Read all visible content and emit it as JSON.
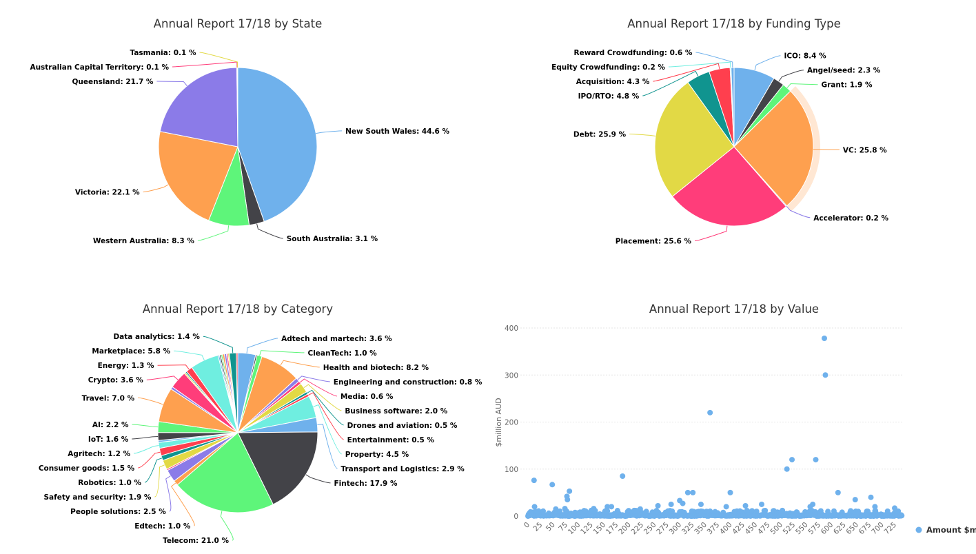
{
  "palette": [
    "#6fb1ec",
    "#434348",
    "#5ef57a",
    "#fea04f",
    "#8b7be8",
    "#ff3d7a",
    "#e2d945",
    "#10948f",
    "#ff3f4e",
    "#6feee0"
  ],
  "chart_data": [
    {
      "type": "pie",
      "title": "Annual Report 17/18 by State",
      "slices": [
        {
          "name": "New South Wales",
          "value": 44.6
        },
        {
          "name": "South Australia",
          "value": 3.1
        },
        {
          "name": "Western Australia",
          "value": 8.3
        },
        {
          "name": "Victoria",
          "value": 22.1
        },
        {
          "name": "Queensland",
          "value": 21.7
        },
        {
          "name": "Australian Capital Territory",
          "value": 0.1
        },
        {
          "name": "Tasmania",
          "value": 0.1
        }
      ]
    },
    {
      "type": "pie",
      "title": "Annual Report 17/18 by Funding Type",
      "highlighted": "VC",
      "slices": [
        {
          "name": "ICO",
          "value": 8.4
        },
        {
          "name": "Angel/seed",
          "value": 2.3
        },
        {
          "name": "Grant",
          "value": 1.9
        },
        {
          "name": "VC",
          "value": 25.8
        },
        {
          "name": "Accelerator",
          "value": 0.2
        },
        {
          "name": "Placement",
          "value": 25.6
        },
        {
          "name": "Debt",
          "value": 25.9
        },
        {
          "name": "IPO/RTO",
          "value": 4.8
        },
        {
          "name": "Acquisition",
          "value": 4.3
        },
        {
          "name": "Equity Crowdfunding",
          "value": 0.2
        },
        {
          "name": "Reward Crowdfunding",
          "value": 0.6
        }
      ]
    },
    {
      "type": "pie",
      "title": "Annual Report 17/18 by Category",
      "slices": [
        {
          "name": "Adtech and martech",
          "value": 3.6
        },
        {
          "name": null,
          "value": 0.3
        },
        {
          "name": "CleanTech",
          "value": 1.0
        },
        {
          "name": "Health and biotech",
          "value": 8.2
        },
        {
          "name": "Engineering and construction",
          "value": 0.8
        },
        {
          "name": "Media",
          "value": 0.6
        },
        {
          "name": "Business software",
          "value": 2.0
        },
        {
          "name": "Drones and aviation",
          "value": 0.5
        },
        {
          "name": "Entertainment",
          "value": 0.5
        },
        {
          "name": "Property",
          "value": 4.5
        },
        {
          "name": "Transport and Logistics",
          "value": 2.9
        },
        {
          "name": "Fintech",
          "value": 17.9
        },
        {
          "name": "Telecom",
          "value": 21.0
        },
        {
          "name": "Edtech",
          "value": 1.0
        },
        {
          "name": "People solutions",
          "value": 2.5
        },
        {
          "name": null,
          "value": 0.3
        },
        {
          "name": "Safety and security",
          "value": 1.9
        },
        {
          "name": "Robotics",
          "value": 1.0
        },
        {
          "name": "Consumer goods",
          "value": 1.5
        },
        {
          "name": "Agritech",
          "value": 1.2
        },
        {
          "name": null,
          "value": 0.4
        },
        {
          "name": "IoT",
          "value": 1.6
        },
        {
          "name": "AI",
          "value": 2.2
        },
        {
          "name": "Travel",
          "value": 7.0
        },
        {
          "name": null,
          "value": 0.5
        },
        {
          "name": "Crypto",
          "value": 3.6
        },
        {
          "name": null,
          "value": 0.3
        },
        {
          "name": null,
          "value": 0.3
        },
        {
          "name": "Energy",
          "value": 1.3
        },
        {
          "name": "Marketplace",
          "value": 5.8
        },
        {
          "name": null,
          "value": 0.3
        },
        {
          "name": null,
          "value": 0.3
        },
        {
          "name": null,
          "value": 0.3
        },
        {
          "name": null,
          "value": 0.4
        },
        {
          "name": null,
          "value": 0.4
        },
        {
          "name": null,
          "value": 0.3
        },
        {
          "name": null,
          "value": 0.3
        },
        {
          "name": "Data analytics",
          "value": 1.4
        },
        {
          "name": null,
          "value": 0.3
        }
      ]
    },
    {
      "type": "scatter",
      "title": "Annual Report 17/18 by Value",
      "ylabel": "$million AUD",
      "xlabel": "",
      "xlim": [
        0,
        735
      ],
      "ylim": [
        0,
        400
      ],
      "xticks": [
        0,
        25,
        50,
        75,
        100,
        125,
        150,
        175,
        200,
        225,
        250,
        275,
        300,
        325,
        350,
        375,
        400,
        425,
        450,
        475,
        500,
        525,
        550,
        575,
        600,
        625,
        650,
        675,
        700,
        725
      ],
      "yticks": [
        0,
        100,
        200,
        300,
        400
      ],
      "grid": true,
      "legend": {
        "label": "Amount $m",
        "position": "bottom-right"
      },
      "series": [
        {
          "name": "Amount $m",
          "baseline_count": 740,
          "baseline_max": 12,
          "points": [
            [
              12,
              76
            ],
            [
              48,
              67
            ],
            [
              82,
              53
            ],
            [
              77,
              42
            ],
            [
              78,
              35
            ],
            [
              187,
              85
            ],
            [
              360,
              220
            ],
            [
              512,
              100
            ],
            [
              522,
              120
            ],
            [
              569,
              120
            ],
            [
              586,
              378
            ],
            [
              588,
              300
            ],
            [
              400,
              50
            ],
            [
              613,
              50
            ],
            [
              316,
              50
            ],
            [
              326,
              50
            ],
            [
              678,
              40
            ],
            [
              647,
              35
            ],
            [
              13,
              20
            ],
            [
              157,
              20
            ],
            [
              257,
              22
            ],
            [
              283,
              25
            ],
            [
              300,
              33
            ],
            [
              342,
              25
            ],
            [
              306,
              27
            ],
            [
              392,
              20
            ],
            [
              430,
              22
            ],
            [
              462,
              25
            ],
            [
              558,
              20
            ],
            [
              563,
              25
            ],
            [
              686,
              20
            ],
            [
              725,
              17
            ],
            [
              165,
              20
            ],
            [
              222,
              15
            ],
            [
              130,
              16
            ],
            [
              55,
              15
            ],
            [
              73,
              16
            ]
          ]
        }
      ]
    }
  ]
}
